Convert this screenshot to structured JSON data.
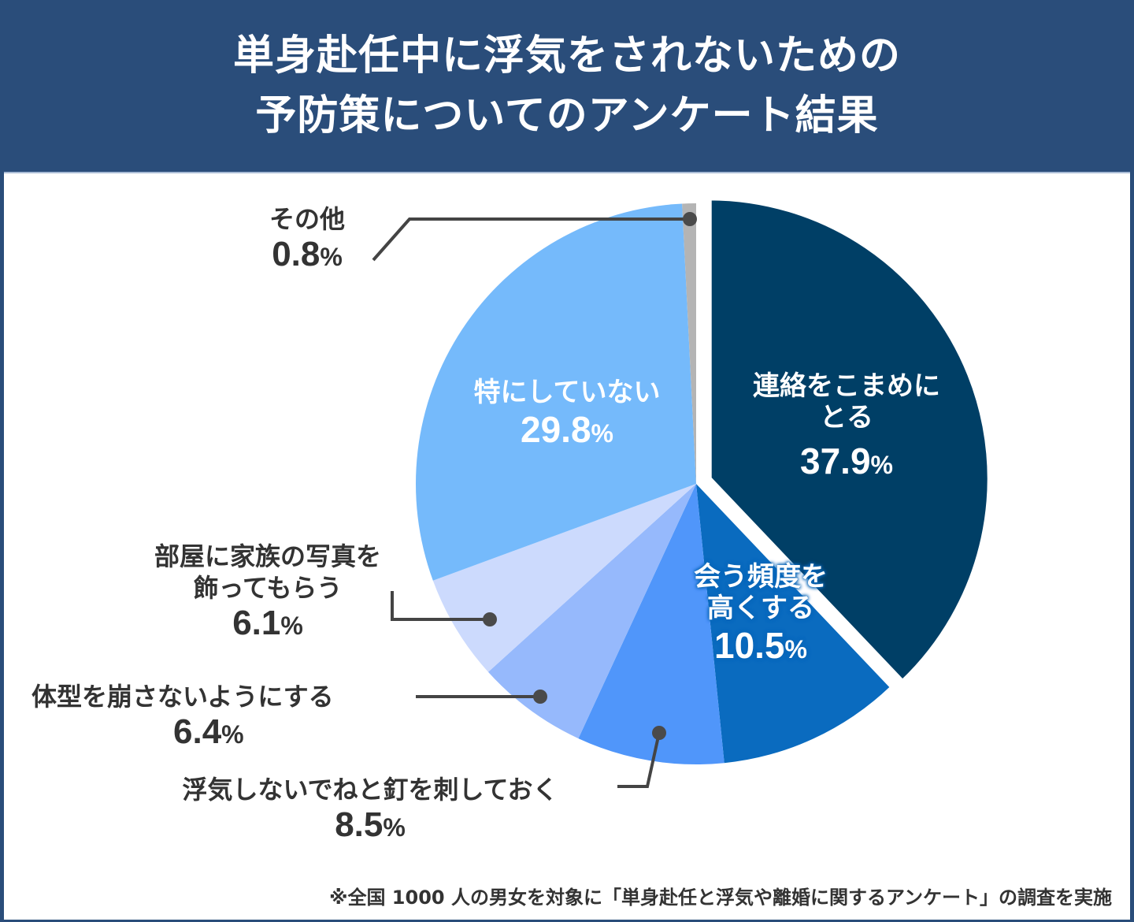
{
  "header": {
    "title_line1": "単身赴任中に浮気をされないための",
    "title_line2": "予防策についてのアンケート結果",
    "bg_color": "#2a4d7a"
  },
  "labels": {
    "renraku": {
      "name1": "連絡をこまめに",
      "name2": "とる",
      "pct": "37.9",
      "unit": "%"
    },
    "au": {
      "name1": "会う頻度を",
      "name2": "高くする",
      "pct": "10.5",
      "unit": "%"
    },
    "kugi": {
      "name": "浮気しないでねと釘を刺しておく",
      "pct": "8.5",
      "unit": "%"
    },
    "taikei": {
      "name": "体型を崩さないようにする",
      "pct": "6.4",
      "unit": "%"
    },
    "shashin": {
      "name1": "部屋に家族の写真を",
      "name2": "飾ってもらう",
      "pct": "6.1",
      "unit": "%"
    },
    "tokuni": {
      "name": "特にしていない",
      "pct": "29.8",
      "unit": "%"
    },
    "sonota": {
      "name": "その他",
      "pct": "0.8",
      "unit": "%"
    }
  },
  "footnote": "※全国 1000 人の男女を対象に「単身赴任と浮気や離婚に関するアンケート」の調査を実施",
  "chart_data": {
    "type": "pie",
    "title": "単身赴任中に浮気をされないための予防策についてのアンケート結果",
    "start_angle": "12 o'clock, clockwise",
    "categories": [
      "連絡をこまめにとる",
      "会う頻度を高くする",
      "浮気しないでねと釘を刺しておく",
      "体型を崩さないようにする",
      "部屋に家族の写真を飾ってもらう",
      "特にしていない",
      "その他"
    ],
    "values": [
      37.9,
      10.5,
      8.5,
      6.4,
      6.1,
      29.8,
      0.8
    ],
    "unit": "%",
    "colors": [
      "#003f66",
      "#0a6bbf",
      "#5096fa",
      "#96b9fc",
      "#ccdafd",
      "#75bafb",
      "#b4b4b4"
    ],
    "exploded": [
      "連絡をこまめにとる"
    ],
    "annotation": "※全国 1000 人の男女を対象に「単身赴任と浮気や離婚に関するアンケート」の調査を実施"
  }
}
